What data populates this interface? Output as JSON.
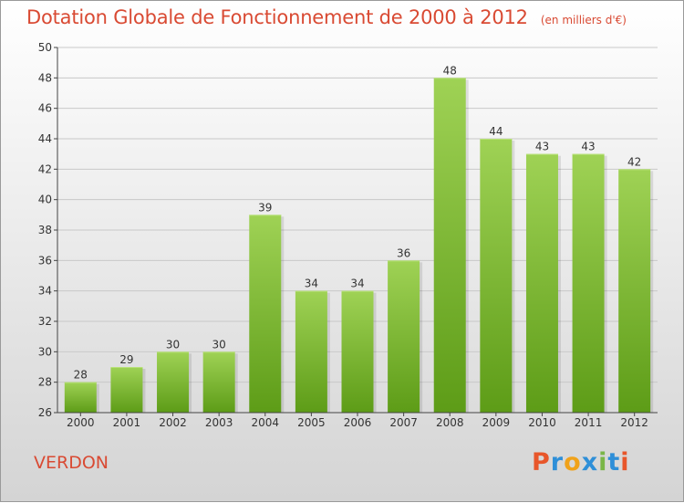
{
  "title": "Dotation Globale de Fonctionnement de 2000 à 2012",
  "unit_note": "(en milliers d'€)",
  "commune": "VERDON",
  "logo": {
    "letters": [
      "P",
      "r",
      "o",
      "x",
      "i",
      "t",
      "i"
    ],
    "colors": [
      "#e8562a",
      "#2e8fd8",
      "#f0a21a",
      "#2e8fd8",
      "#7ab648",
      "#2e8fd8",
      "#e8562a"
    ]
  },
  "colors": {
    "title": "#d94a33",
    "bar_top": "#9fd255",
    "bar_bottom": "#5d9c17",
    "grid": "#c8c8c8",
    "axis": "#444444"
  },
  "chart_data": {
    "type": "bar",
    "title": "Dotation Globale de Fonctionnement de 2000 à 2012",
    "subtitle": "(en milliers d'€)",
    "categories": [
      "2000",
      "2001",
      "2002",
      "2003",
      "2004",
      "2005",
      "2006",
      "2007",
      "2008",
      "2009",
      "2010",
      "2011",
      "2012"
    ],
    "values": [
      28,
      29,
      30,
      30,
      39,
      34,
      34,
      36,
      48,
      44,
      43,
      43,
      42
    ],
    "xlabel": "",
    "ylabel": "",
    "ylim": [
      26,
      50
    ],
    "yticks": [
      26,
      28,
      30,
      32,
      34,
      36,
      38,
      40,
      42,
      44,
      46,
      48,
      50
    ],
    "grid": true,
    "data_labels": true,
    "legend": "none"
  }
}
